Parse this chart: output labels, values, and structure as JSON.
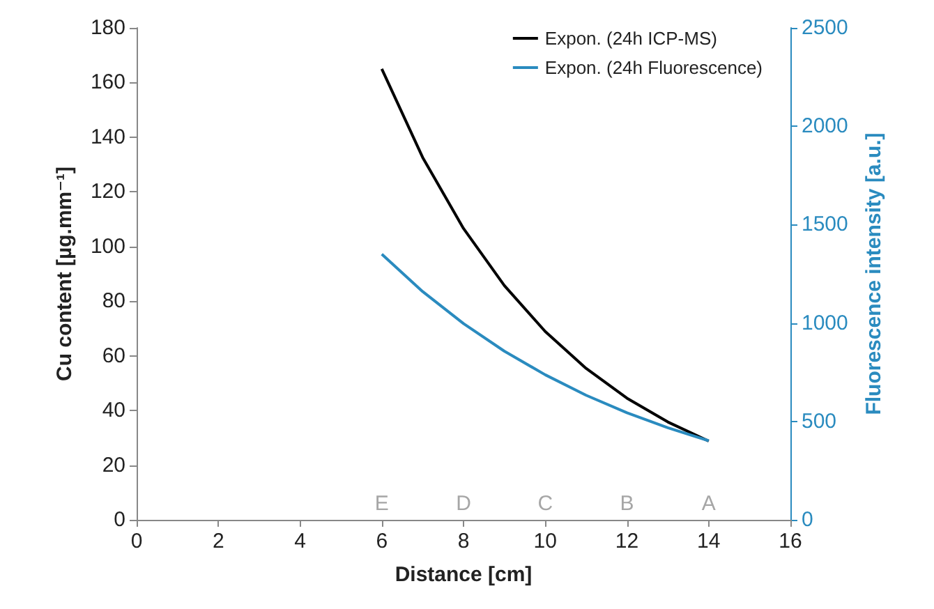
{
  "chart_data": {
    "type": "line",
    "xlabel": "Distance [cm]",
    "ylabel": "Cu content [µg.mm⁻¹]",
    "y2label": "Fluorescence intensity [a.u.]",
    "xlim": [
      0,
      16
    ],
    "xticks": [
      0,
      2,
      4,
      6,
      8,
      10,
      12,
      14,
      16
    ],
    "ylim": [
      0,
      180
    ],
    "yticks": [
      0,
      20,
      40,
      60,
      80,
      100,
      120,
      140,
      160,
      180
    ],
    "y2lim": [
      0,
      2500
    ],
    "y2ticks": [
      0,
      500,
      1000,
      1500,
      2000,
      2500
    ],
    "grid": false,
    "legend": "top right",
    "marker": "none",
    "line_style": "solid",
    "series": [
      {
        "name": "Expon. (24h ICP-MS)",
        "color": "#000000",
        "x": [
          6,
          7,
          8,
          9,
          10,
          11,
          12,
          13,
          14
        ],
        "values": [
          165,
          132.6,
          106.6,
          85.7,
          68.9,
          55.4,
          44.5,
          35.8,
          28.8
        ]
      },
      {
        "name": "Expon. (24h Fluorescence)",
        "color": "#2a8bbf",
        "axis": "y2",
        "x": [
          6,
          7,
          8,
          9,
          10,
          11,
          12,
          13,
          14
        ],
        "values": [
          1350,
          1160,
          997,
          857,
          737,
          633,
          544,
          468,
          402
        ]
      }
    ],
    "annotations": [
      "E",
      "D",
      "C",
      "B",
      "A"
    ]
  }
}
